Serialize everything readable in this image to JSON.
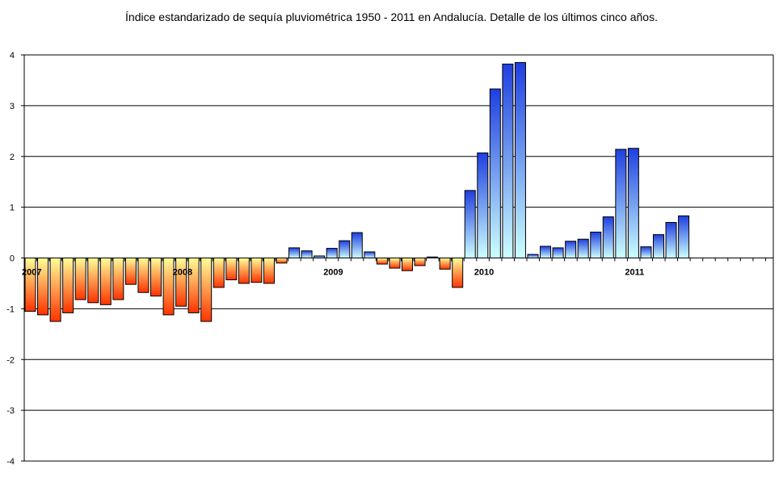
{
  "chart_data": {
    "type": "bar",
    "title": "Índice estandarizado de sequía pluviométrica 1950 - 2011 en Andalucía.  Detalle de los últimos cinco años.",
    "xlabel": "",
    "ylabel": "",
    "ylim": [
      -4,
      4
    ],
    "yticks": [
      "4",
      "3",
      "2",
      "1",
      "0",
      "-1",
      "-2",
      "-3",
      "-4"
    ],
    "ytick_values": [
      4,
      3,
      2,
      1,
      0,
      -1,
      -2,
      -3,
      -4
    ],
    "year_labels": [
      {
        "label": "2007",
        "index": 0
      },
      {
        "label": "2008",
        "index": 12
      },
      {
        "label": "2009",
        "index": 24
      },
      {
        "label": "2010",
        "index": 36
      },
      {
        "label": "2011",
        "index": 48
      }
    ],
    "total_slots": 60,
    "grid": true,
    "legend": "none",
    "colors": {
      "negative_top": "#ffff99",
      "negative_bottom": "#ff3300",
      "positive_top": "#1f3fe0",
      "positive_bottom": "#ccffff"
    },
    "values": [
      -1.05,
      -1.12,
      -1.25,
      -1.08,
      -0.82,
      -0.88,
      -0.92,
      -0.82,
      -0.52,
      -0.68,
      -0.75,
      -1.12,
      -0.95,
      -1.08,
      -1.25,
      -0.58,
      -0.43,
      -0.5,
      -0.48,
      -0.5,
      -0.1,
      0.2,
      0.14,
      0.04,
      0.19,
      0.34,
      0.5,
      0.12,
      -0.12,
      -0.2,
      -0.25,
      -0.15,
      0.02,
      -0.22,
      -0.58,
      1.33,
      2.07,
      3.33,
      3.82,
      3.85,
      0.07,
      0.23,
      0.2,
      0.33,
      0.37,
      0.51,
      0.81,
      2.14,
      2.16,
      0.22,
      0.46,
      0.7,
      0.83
    ]
  }
}
